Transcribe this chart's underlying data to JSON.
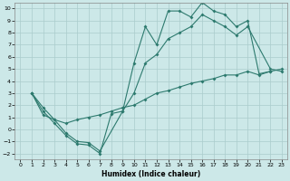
{
  "xlabel": "Humidex (Indice chaleur)",
  "bg_color": "#cce8e8",
  "grid_color": "#aacccc",
  "line_color": "#2d7a6e",
  "xlim": [
    -0.5,
    23.5
  ],
  "ylim": [
    -2.5,
    10.5
  ],
  "xticks": [
    0,
    1,
    2,
    3,
    4,
    5,
    6,
    7,
    8,
    9,
    10,
    11,
    12,
    13,
    14,
    15,
    16,
    17,
    18,
    19,
    20,
    21,
    22,
    23
  ],
  "yticks": [
    -2,
    -1,
    0,
    1,
    2,
    3,
    4,
    5,
    6,
    7,
    8,
    9,
    10
  ],
  "curve1_x": [
    1,
    2,
    3,
    4,
    5,
    6,
    7,
    8,
    9,
    10,
    11,
    12,
    13,
    14,
    15,
    16,
    17,
    18,
    19,
    20,
    21,
    22
  ],
  "curve1_y": [
    3,
    1.5,
    0.5,
    -0.5,
    -1.2,
    -1.3,
    -2.0,
    1.3,
    1.5,
    5.5,
    8.5,
    7.0,
    9.8,
    9.8,
    9.3,
    10.5,
    9.8,
    9.5,
    8.5,
    9.0,
    4.6,
    4.8
  ],
  "curve2_x": [
    1,
    2,
    3,
    4,
    5,
    6,
    7,
    9,
    10,
    11,
    12,
    13,
    14,
    15,
    16,
    17,
    18,
    19,
    20,
    22,
    23
  ],
  "curve2_y": [
    3,
    1.8,
    0.8,
    -0.3,
    -1.0,
    -1.1,
    -1.8,
    1.5,
    3.0,
    5.5,
    6.2,
    7.5,
    8.0,
    8.5,
    9.5,
    9.0,
    8.5,
    7.8,
    8.5,
    5.0,
    4.8
  ],
  "curve3_x": [
    1,
    2,
    3,
    4,
    5,
    6,
    7,
    8,
    9,
    10,
    11,
    12,
    13,
    14,
    15,
    16,
    17,
    18,
    19,
    20,
    21,
    22,
    23
  ],
  "curve3_y": [
    3,
    1.2,
    0.8,
    0.5,
    0.8,
    1.0,
    1.2,
    1.5,
    1.8,
    2.0,
    2.5,
    3.0,
    3.2,
    3.5,
    3.8,
    4.0,
    4.2,
    4.5,
    4.5,
    4.8,
    4.5,
    4.8,
    5.0
  ]
}
